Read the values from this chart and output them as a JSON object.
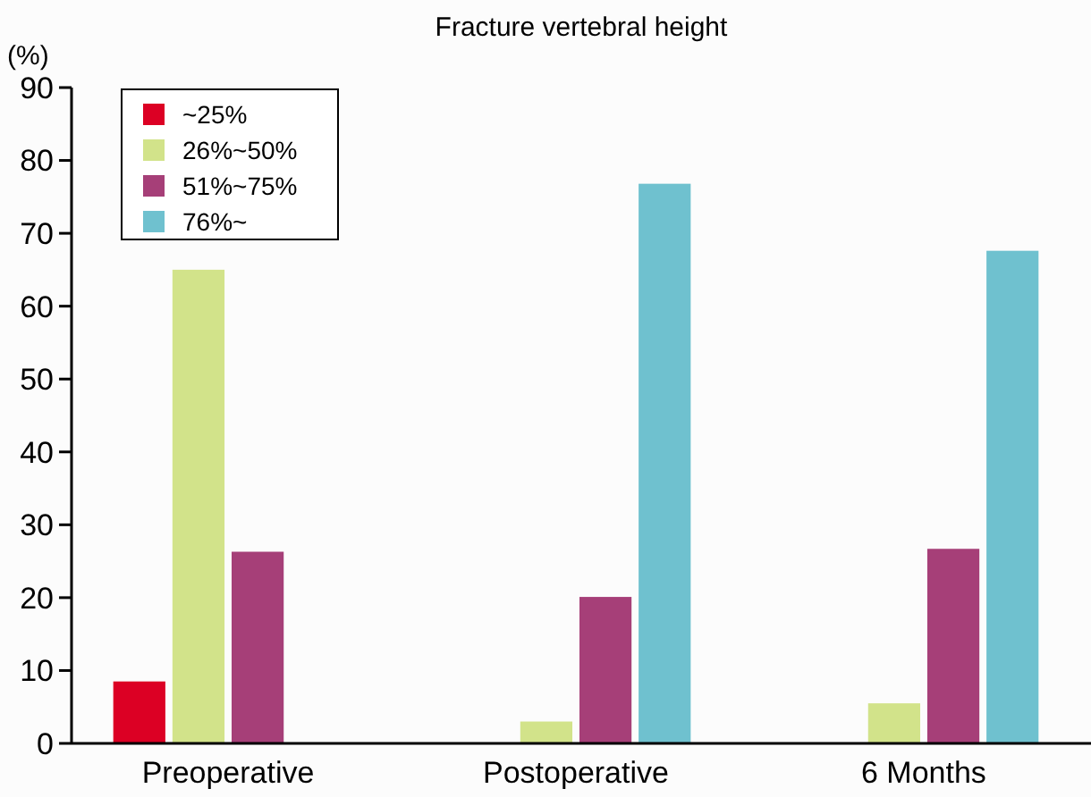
{
  "chart_data": {
    "type": "bar",
    "title": "Fracture vertebral height",
    "ylabel": "(%)",
    "categories": [
      "Preoperative",
      "Postoperative",
      "6 Months"
    ],
    "series": [
      {
        "name": "~25%",
        "color": "#dc0024",
        "values": [
          8.5,
          0,
          0
        ]
      },
      {
        "name": "26%~50%",
        "color": "#d2e38a",
        "values": [
          65,
          3,
          5.5
        ]
      },
      {
        "name": "51%~75%",
        "color": "#a63f78",
        "values": [
          26.3,
          20.1,
          26.7
        ]
      },
      {
        "name": "76%~",
        "color": "#6fc1cf",
        "values": [
          0,
          76.8,
          67.6
        ]
      }
    ],
    "ylim": [
      0,
      90
    ],
    "yticks": [
      0,
      10,
      20,
      30,
      40,
      50,
      60,
      70,
      80,
      90
    ],
    "legend": "top left",
    "grid": false
  }
}
